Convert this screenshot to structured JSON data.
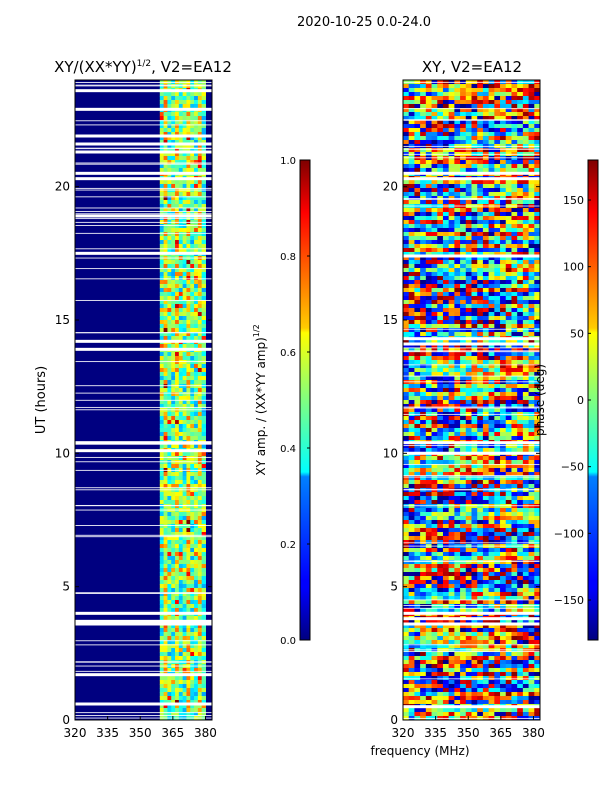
{
  "figure_title": "2020-10-25 0.0-24.0",
  "chart_data": [
    {
      "type": "heatmap",
      "title_main": "XY/(XX*YY)",
      "title_sup": "1/2",
      "title_rest": ", V2=EA12",
      "xlabel": "",
      "ylabel": "UT (hours)",
      "xlim": [
        320,
        383
      ],
      "ylim": [
        0,
        24
      ],
      "xticks": [
        320,
        335,
        350,
        365,
        380
      ],
      "yticks": [
        0,
        5,
        10,
        15,
        20
      ],
      "colorbar": {
        "label_main": "XY amp. / (XX*YY amp)",
        "label_sup": "1/2",
        "range": [
          0.0,
          1.0
        ],
        "ticks": [
          "0.0",
          "0.2",
          "0.4",
          "0.6",
          "0.8",
          "1.0"
        ],
        "colormap": "jet"
      },
      "bright_band_mhz": [
        359,
        380
      ],
      "gap_hours": [
        0.6,
        1.7,
        3.6,
        3.7,
        4.0,
        10.1,
        10.4,
        13.9,
        14.2,
        17.5,
        18.9,
        20.3,
        20.5,
        21.3,
        21.6,
        21.9,
        22.9,
        23.6
      ]
    },
    {
      "type": "heatmap",
      "title": "XY, V2=EA12",
      "xlabel": "",
      "ylabel": "",
      "xlim": [
        320,
        383
      ],
      "ylim": [
        0,
        24
      ],
      "xticks": [
        320,
        335,
        350,
        365,
        380
      ],
      "yticks": [
        0,
        5,
        10,
        15,
        20
      ],
      "colorbar": {
        "label": "phase (deg)",
        "range": [
          -180,
          180
        ],
        "ticks": [
          "−150",
          "−100",
          "−50",
          "0",
          "50",
          "100",
          "150"
        ],
        "tick_values": [
          -150,
          -100,
          -50,
          0,
          50,
          100,
          150
        ],
        "colormap": "jet"
      },
      "gap_hours": [
        0.5,
        3.6,
        3.8,
        4.0,
        10.0,
        10.4,
        14.1,
        14.3,
        17.4,
        20.3,
        20.5
      ]
    }
  ],
  "shared_xlabel": "frequency (MHz)",
  "colors": {
    "jet_low": "#00007f",
    "jet_high": "#7f0000",
    "frame": "#000000"
  }
}
